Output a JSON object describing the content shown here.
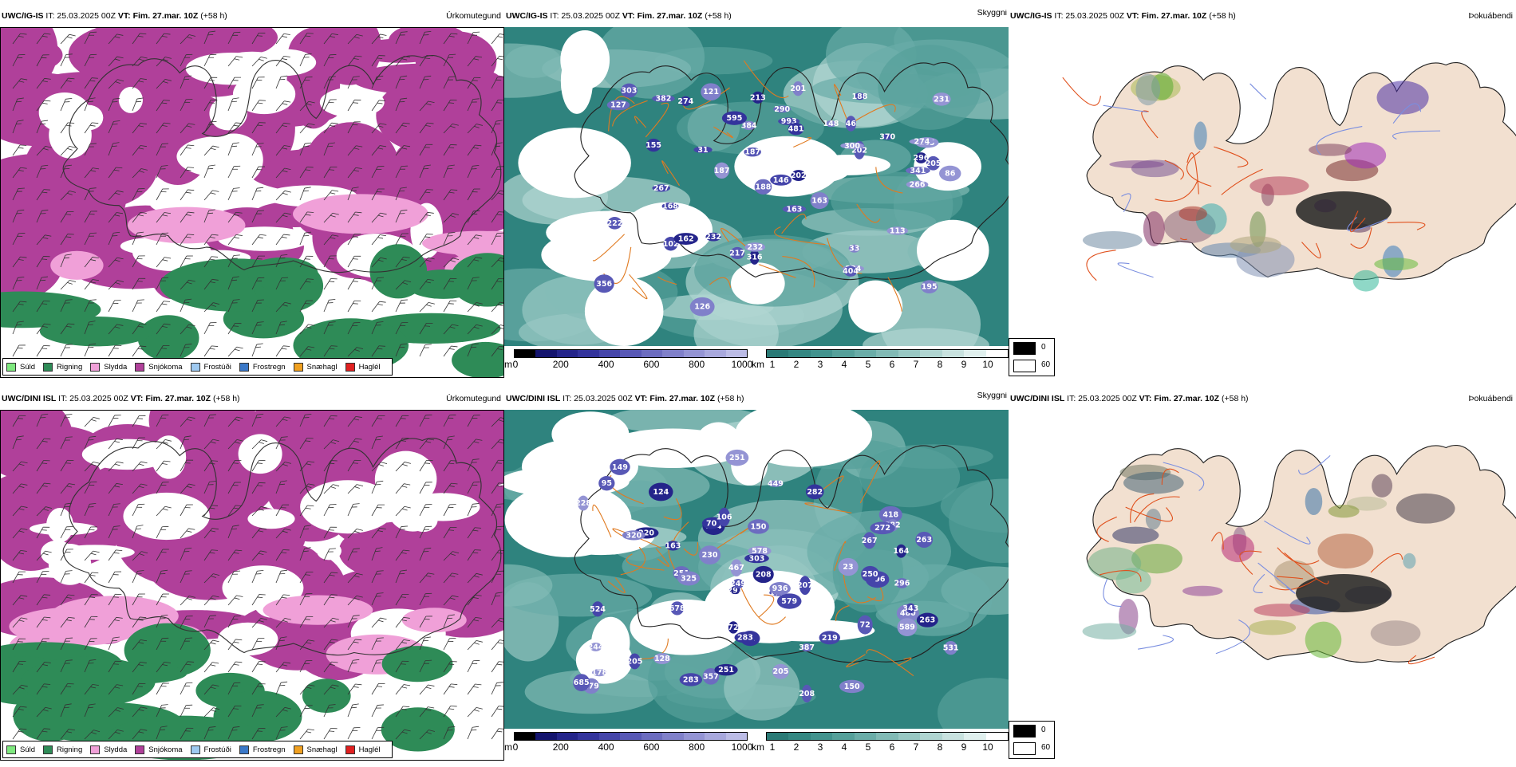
{
  "rows": [
    {
      "model": "UWC/IG-IS",
      "init_label": "IT: 25.03.2025 00Z",
      "vt_prefix": "VT:",
      "valid_time": "Fim. 27.mar. 10Z",
      "lead": "(+58 h)",
      "types": [
        "Úrkomutegund",
        "Skyggni",
        "Þokuábendi"
      ],
      "elevations": [
        "234",
        "165",
        "205",
        "370",
        "384",
        "232",
        "303",
        "993",
        "187",
        "202",
        "31",
        "222",
        "188",
        "113",
        "202",
        "267",
        "155",
        "195",
        "168",
        "187",
        "382",
        "341",
        "404",
        "290",
        "274",
        "356",
        "231",
        "316",
        "163",
        "201",
        "146",
        "126",
        "213",
        "481",
        "595",
        "300",
        "148",
        "274",
        "217",
        "266",
        "296",
        "163",
        "121",
        "188",
        "232",
        "127",
        "33",
        "86",
        "102",
        "46",
        "162"
      ]
    },
    {
      "model": "UWC/DINI ISL",
      "init_label": "IT: 25.03.2025 00Z",
      "vt_prefix": "VT:",
      "valid_time": "Fim. 27.mar. 10Z",
      "lead": "(+58 h)",
      "types": [
        "Úrkomutegund",
        "Skyggni",
        "Þokuábendi"
      ],
      "elevations": [
        "418",
        "282",
        "163",
        "179",
        "387",
        "230",
        "578",
        "296",
        "291",
        "678",
        "303",
        "205",
        "22",
        "171",
        "196",
        "205",
        "149",
        "251",
        "251",
        "283",
        "178",
        "264",
        "220",
        "128",
        "244",
        "382",
        "164",
        "579",
        "357",
        "524",
        "531",
        "272",
        "480",
        "467",
        "325",
        "249",
        "263",
        "343",
        "267",
        "207",
        "219",
        "228",
        "449",
        "150",
        "124",
        "250",
        "320",
        "150",
        "283",
        "685",
        "589",
        "208",
        "251",
        "208",
        "70",
        "106",
        "72",
        "72",
        "95",
        "23",
        "263",
        "936"
      ]
    }
  ],
  "precip_legend": [
    "Súld",
    "Rigning",
    "Slydda",
    "Snjókoma",
    "Frostúði",
    "Frostregn",
    "Snæhagl",
    "Haglél"
  ],
  "precip_colors": [
    "#7ee87e",
    "#2e8b57",
    "#f0a0d8",
    "#b0409a",
    "#9ec9f0",
    "#3a78c8",
    "#f0a020",
    "#e02020"
  ],
  "height_scale": {
    "unit": "m",
    "ticks": [
      "0",
      "200",
      "400",
      "600",
      "800",
      "1000"
    ]
  },
  "height_colors": [
    "#000000",
    "#14146e",
    "#24248a",
    "#33339c",
    "#4545aa",
    "#5858b6",
    "#6c6cc0",
    "#8080ca",
    "#9494d4",
    "#a8a8dd",
    "#bcbce6"
  ],
  "visibility_scale": {
    "unit": "km",
    "ticks": [
      "1",
      "2",
      "3",
      "4",
      "5",
      "6",
      "7",
      "8",
      "9",
      "10"
    ]
  },
  "visibility_colors": [
    "#2a7a76",
    "#348782",
    "#42938e",
    "#55a09a",
    "#6aada8",
    "#81bab5",
    "#98c8c3",
    "#b0d5d1",
    "#c8e2df",
    "#e0f0ee",
    "#ffffff"
  ],
  "fog_legend": {
    "values": [
      "0",
      "60"
    ],
    "colors": [
      "#000000",
      "#ffffff"
    ]
  },
  "icons": {
    "wind": "wind-barb-icon"
  }
}
